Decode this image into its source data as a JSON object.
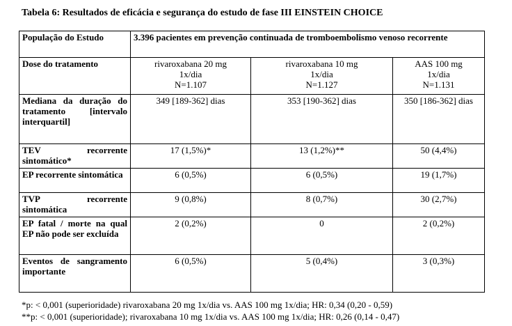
{
  "title": "Tabela 6: Resultados de eficácia e segurança do estudo de fase III EINSTEIN CHOICE",
  "table": {
    "population_label": "População do Estudo",
    "population_value": "3.396 pacientes em prevenção continuada de tromboembolismo venoso recorrente",
    "dose_label": "Dose do tratamento",
    "arms": [
      {
        "line1": "rivaroxabana 20 mg",
        "line2": "1x/dia",
        "line3": "N=1.107"
      },
      {
        "line1": "rivaroxabana 10 mg",
        "line2": "1x/dia",
        "line3": "N=1.127"
      },
      {
        "line1": "AAS 100 mg",
        "line2": "1x/dia",
        "line3": "N=1.131"
      }
    ],
    "rows": [
      {
        "label": "Mediana da duração do tratamento [intervalo interquartil]",
        "values": [
          "349 [189-362] dias",
          "353 [190-362] dias",
          "350 [186-362] dias"
        ]
      },
      {
        "label": "TEV recorrente sintomático*",
        "values": [
          "17 (1,5%)*",
          "13 (1,2%)**",
          "50 (4,4%)"
        ]
      },
      {
        "label": "EP recorrente sintomática",
        "values": [
          "6 (0,5%)",
          "6 (0,5%)",
          "19 (1,7%)"
        ]
      },
      {
        "label": "TVP recorrente sintomática",
        "values": [
          "9 (0,8%)",
          "8 (0,7%)",
          "30 (2,7%)"
        ]
      },
      {
        "label": "EP fatal / morte na qual EP não pode ser excluída",
        "values": [
          "2 (0,2%)",
          "0",
          "2 (0,2%)"
        ]
      },
      {
        "label": "Eventos de sangramento importante",
        "values": [
          "6 (0,5%)",
          "5 (0,4%)",
          "3 (0,3%)"
        ]
      }
    ]
  },
  "footnotes": [
    "*p: < 0,001 (superioridade) rivaroxabana 20 mg 1x/dia vs. AAS 100 mg 1x/dia; HR: 0,34 (0,20 - 0,59)",
    "**p: < 0,001 (superioridade); rivaroxabana 10 mg 1x/dia vs. AAS 100 mg 1x/dia; HR: 0,26 (0,14 - 0,47)"
  ]
}
